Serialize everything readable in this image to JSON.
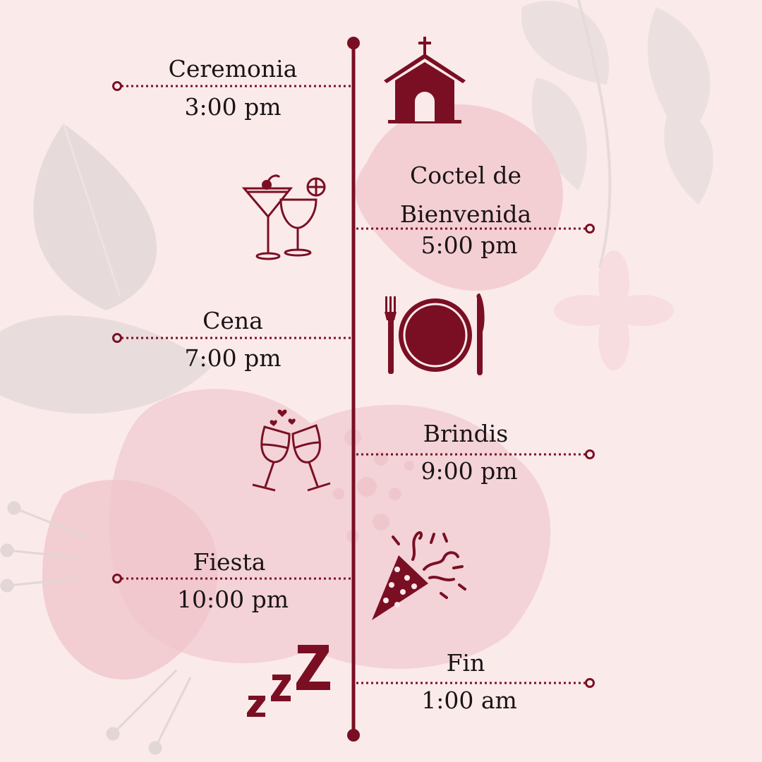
{
  "colors": {
    "accent": "#7a0f24",
    "background": "#fbeaea",
    "text": "#1a1416"
  },
  "timeline": [
    {
      "event": "Ceremonia",
      "time": "3:00 pm",
      "icon": "church-icon"
    },
    {
      "event_line1": "Coctel de",
      "event_line2": "Bienvenida",
      "time": "5:00 pm",
      "icon": "cocktails-icon"
    },
    {
      "event": "Cena",
      "time": "7:00 pm",
      "icon": "dinner-plate-icon"
    },
    {
      "event": "Brindis",
      "time": "9:00 pm",
      "icon": "toast-glasses-icon"
    },
    {
      "event": "Fiesta",
      "time": "10:00 pm",
      "icon": "party-popper-icon"
    },
    {
      "event": "Fin",
      "time": "1:00 am",
      "icon": "sleep-zzz-icon"
    }
  ]
}
